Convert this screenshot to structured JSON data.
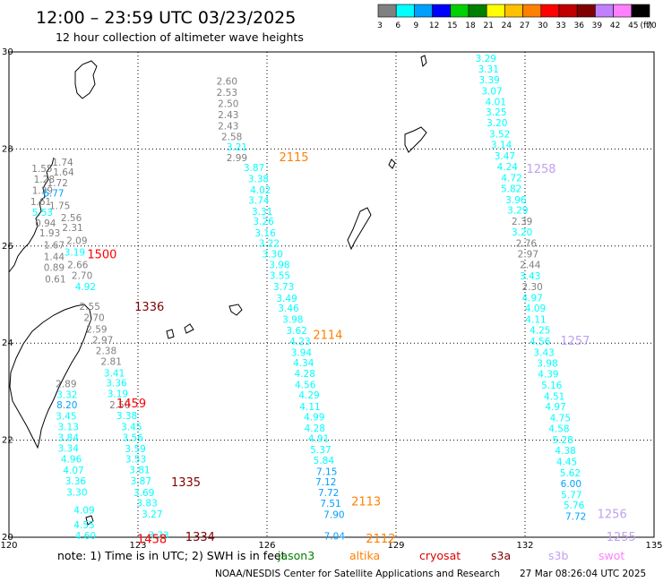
{
  "header": {
    "title": "12:00 – 23:59 UTC 03/23/2025",
    "subtitle": "12 hour collection of altimeter wave heights"
  },
  "colorbar": {
    "colors": [
      "#808080",
      "#00ffff",
      "#00a0ff",
      "#0000ff",
      "#00d000",
      "#008000",
      "#ffff00",
      "#ffc000",
      "#ff8000",
      "#ff0000",
      "#c00000",
      "#800000",
      "#c080ff",
      "#ff80ff",
      "#000000"
    ],
    "labels": [
      "3",
      "6",
      "9",
      "12",
      "15",
      "18",
      "21",
      "24",
      "27",
      "30",
      "33",
      "36",
      "39",
      "42",
      "45",
      "70"
    ],
    "unit": "(ft)"
  },
  "note": {
    "text": "note:  1) Time is in UTC;  2) SWH is in feet",
    "satellites": [
      {
        "name": "jason3",
        "color": "#008000"
      },
      {
        "name": "altika",
        "color": "#ff8000"
      },
      {
        "name": "cryosat",
        "color": "#e00000"
      },
      {
        "name": "s3a",
        "color": "#800000"
      },
      {
        "name": "s3b",
        "color": "#c0a0f0"
      },
      {
        "name": "swot",
        "color": "#ff80ff"
      }
    ]
  },
  "footer": {
    "left": "NOAA/NESDIS Center for Satellite Applications and Research",
    "right": "27 Mar 08:26:04 UTC 2025"
  },
  "chart_data": {
    "type": "scatter",
    "title": "12:00 – 23:59 UTC 03/23/2025",
    "subtitle": "12 hour collection of altimeter wave heights",
    "xlabel": "",
    "ylabel": "",
    "xlim": [
      120,
      135
    ],
    "ylim": [
      20,
      30
    ],
    "xticks": [
      120,
      123,
      126,
      129,
      132,
      135
    ],
    "yticks": [
      20,
      22,
      24,
      26,
      28,
      30
    ],
    "grid": true,
    "unit": "ft",
    "color_scale": {
      "bounds": [
        3,
        6,
        9,
        12,
        15,
        18,
        21,
        24,
        27,
        30,
        33,
        36,
        39,
        42,
        45,
        70
      ],
      "colors": [
        "#808080",
        "#00ffff",
        "#00a0ff",
        "#0000ff",
        "#00d000",
        "#008000",
        "#ffff00",
        "#ffc000",
        "#ff8000",
        "#ff0000",
        "#c00000",
        "#800000",
        "#c080ff",
        "#ff80ff",
        "#000000"
      ]
    },
    "pass_labels": [
      {
        "text": "2115",
        "lon": 126.28,
        "lat": 27.84,
        "color": "#ff8000"
      },
      {
        "text": "2114",
        "lon": 127.07,
        "lat": 24.18,
        "color": "#ff8000"
      },
      {
        "text": "2113",
        "lon": 127.96,
        "lat": 20.75,
        "color": "#ff8000"
      },
      {
        "text": "2112",
        "lon": 128.3,
        "lat": 19.98,
        "color": "#ff8000"
      },
      {
        "text": "1500",
        "lon": 121.82,
        "lat": 25.84,
        "color": "#ff0000"
      },
      {
        "text": "1459",
        "lon": 122.5,
        "lat": 22.77,
        "color": "#ff0000"
      },
      {
        "text": "1458",
        "lon": 122.98,
        "lat": 19.97,
        "color": "#ff0000"
      },
      {
        "text": "1336",
        "lon": 122.92,
        "lat": 24.76,
        "color": "#800000"
      },
      {
        "text": "1335",
        "lon": 123.77,
        "lat": 21.14,
        "color": "#800000"
      },
      {
        "text": "1334",
        "lon": 124.1,
        "lat": 20.02,
        "color": "#800000"
      },
      {
        "text": "1258",
        "lon": 132.03,
        "lat": 27.6,
        "color": "#c0a0f0"
      },
      {
        "text": "1257",
        "lon": 132.82,
        "lat": 24.06,
        "color": "#c0a0f0"
      },
      {
        "text": "1256",
        "lon": 133.68,
        "lat": 20.49,
        "color": "#c0a0f0"
      },
      {
        "text": "1255",
        "lon": 133.89,
        "lat": 20.02,
        "color": "#c0a0f0"
      }
    ],
    "series": [
      {
        "name": "2115",
        "points": [
          {
            "lon": 125.07,
            "lat": 29.4,
            "swh": "2.60"
          },
          {
            "lon": 125.07,
            "lat": 29.17,
            "swh": "2.53"
          },
          {
            "lon": 125.1,
            "lat": 28.94,
            "swh": "2.50"
          },
          {
            "lon": 125.1,
            "lat": 28.71,
            "swh": "2.43"
          },
          {
            "lon": 125.1,
            "lat": 28.48,
            "swh": "2.43"
          },
          {
            "lon": 125.18,
            "lat": 28.26,
            "swh": "2.58"
          },
          {
            "lon": 125.3,
            "lat": 28.04,
            "swh": "3.21"
          },
          {
            "lon": 125.3,
            "lat": 27.82,
            "swh": "2.99"
          },
          {
            "lon": 125.7,
            "lat": 27.62,
            "swh": "3.87"
          },
          {
            "lon": 125.8,
            "lat": 27.39,
            "swh": "3.38"
          },
          {
            "lon": 125.85,
            "lat": 27.16,
            "swh": "4.02"
          },
          {
            "lon": 125.81,
            "lat": 26.95,
            "swh": "3.74"
          },
          {
            "lon": 125.89,
            "lat": 26.72,
            "swh": "3.31"
          },
          {
            "lon": 125.92,
            "lat": 26.51,
            "swh": "3.26"
          },
          {
            "lon": 125.96,
            "lat": 26.27,
            "swh": "3.16"
          },
          {
            "lon": 126.05,
            "lat": 26.06,
            "swh": "3.22"
          },
          {
            "lon": 126.13,
            "lat": 25.84,
            "swh": "3.30"
          },
          {
            "lon": 126.29,
            "lat": 25.62,
            "swh": "3.98"
          },
          {
            "lon": 126.3,
            "lat": 25.4,
            "swh": "3.55"
          },
          {
            "lon": 126.39,
            "lat": 25.17,
            "swh": "3.73"
          },
          {
            "lon": 126.46,
            "lat": 24.93,
            "swh": "3.49"
          },
          {
            "lon": 126.5,
            "lat": 24.72,
            "swh": "3.46"
          },
          {
            "lon": 126.6,
            "lat": 24.49,
            "swh": "3.98"
          },
          {
            "lon": 126.69,
            "lat": 24.26,
            "swh": "3.62"
          },
          {
            "lon": 126.77,
            "lat": 24.04,
            "swh": "4.23"
          },
          {
            "lon": 126.8,
            "lat": 23.81,
            "swh": "3.94"
          },
          {
            "lon": 126.85,
            "lat": 23.6,
            "swh": "4.34"
          },
          {
            "lon": 126.88,
            "lat": 23.38,
            "swh": "4.28"
          },
          {
            "lon": 126.89,
            "lat": 23.15,
            "swh": "4.56"
          },
          {
            "lon": 126.98,
            "lat": 22.93,
            "swh": "4.29"
          },
          {
            "lon": 127.0,
            "lat": 22.69,
            "swh": "4.11"
          },
          {
            "lon": 127.1,
            "lat": 22.48,
            "swh": "4.99"
          },
          {
            "lon": 127.11,
            "lat": 22.25,
            "swh": "4.28"
          },
          {
            "lon": 127.2,
            "lat": 22.04,
            "swh": "4.91"
          },
          {
            "lon": 127.25,
            "lat": 21.81,
            "swh": "5.37"
          },
          {
            "lon": 127.32,
            "lat": 21.59,
            "swh": "5.84"
          },
          {
            "lon": 127.39,
            "lat": 21.36,
            "swh": "7.15"
          },
          {
            "lon": 127.37,
            "lat": 21.14,
            "swh": "7.12"
          },
          {
            "lon": 127.43,
            "lat": 20.92,
            "swh": "7.72"
          },
          {
            "lon": 127.48,
            "lat": 20.7,
            "swh": "7.51"
          },
          {
            "lon": 127.56,
            "lat": 20.47,
            "swh": "7.90"
          },
          {
            "lon": 127.57,
            "lat": 20.03,
            "swh": "7.04"
          }
        ]
      },
      {
        "name": "1500",
        "points": [
          {
            "lon": 121.25,
            "lat": 27.73,
            "swh": "1.74"
          },
          {
            "lon": 120.77,
            "lat": 27.6,
            "swh": "1.55"
          },
          {
            "lon": 121.27,
            "lat": 27.53,
            "swh": "1.64"
          },
          {
            "lon": 120.82,
            "lat": 27.38,
            "swh": "1.28"
          },
          {
            "lon": 121.13,
            "lat": 27.31,
            "swh": "1.72"
          },
          {
            "lon": 120.78,
            "lat": 27.15,
            "swh": "1.39"
          },
          {
            "lon": 121.04,
            "lat": 27.09,
            "swh": "6.77"
          },
          {
            "lon": 120.74,
            "lat": 26.92,
            "swh": "1.61"
          },
          {
            "lon": 121.18,
            "lat": 26.84,
            "swh": "1.75"
          },
          {
            "lon": 120.78,
            "lat": 26.7,
            "swh": "5.53"
          },
          {
            "lon": 121.45,
            "lat": 26.59,
            "swh": "2.56"
          },
          {
            "lon": 120.85,
            "lat": 26.48,
            "swh": "0.94"
          },
          {
            "lon": 121.48,
            "lat": 26.38,
            "swh": "2.31"
          },
          {
            "lon": 120.95,
            "lat": 26.27,
            "swh": "1.93"
          },
          {
            "lon": 121.58,
            "lat": 26.12,
            "swh": "2.09"
          },
          {
            "lon": 121.05,
            "lat": 26.02,
            "swh": "1.67"
          },
          {
            "lon": 121.53,
            "lat": 25.88,
            "swh": "3.19"
          },
          {
            "lon": 121.05,
            "lat": 25.78,
            "swh": "1.44"
          },
          {
            "lon": 121.6,
            "lat": 25.62,
            "swh": "2.66"
          },
          {
            "lon": 121.05,
            "lat": 25.56,
            "swh": "0.89"
          },
          {
            "lon": 121.7,
            "lat": 25.4,
            "swh": "2.70"
          },
          {
            "lon": 121.08,
            "lat": 25.32,
            "swh": "0.61"
          },
          {
            "lon": 121.78,
            "lat": 25.17,
            "swh": "4.92"
          }
        ]
      },
      {
        "name": "1336",
        "points": [
          {
            "lon": 121.88,
            "lat": 24.76,
            "swh": "2.55"
          },
          {
            "lon": 121.98,
            "lat": 24.53,
            "swh": "2.70"
          },
          {
            "lon": 122.04,
            "lat": 24.29,
            "swh": "2.59"
          },
          {
            "lon": 122.18,
            "lat": 24.07,
            "swh": "2.97"
          },
          {
            "lon": 122.26,
            "lat": 23.85,
            "swh": "2.38"
          },
          {
            "lon": 122.38,
            "lat": 23.63,
            "swh": "2.81"
          },
          {
            "lon": 122.45,
            "lat": 23.39,
            "swh": "3.41"
          },
          {
            "lon": 122.5,
            "lat": 23.18,
            "swh": "3.36"
          },
          {
            "lon": 122.53,
            "lat": 22.96,
            "swh": "3.19"
          },
          {
            "lon": 122.58,
            "lat": 22.73,
            "swh": "2.50"
          },
          {
            "lon": 122.74,
            "lat": 22.51,
            "swh": "3.38"
          },
          {
            "lon": 122.85,
            "lat": 22.28,
            "swh": "3.45"
          },
          {
            "lon": 122.88,
            "lat": 22.06,
            "swh": "3.56"
          },
          {
            "lon": 122.94,
            "lat": 21.83,
            "swh": "3.59"
          },
          {
            "lon": 122.95,
            "lat": 21.61,
            "swh": "3.53"
          },
          {
            "lon": 123.04,
            "lat": 21.39,
            "swh": "3.81"
          },
          {
            "lon": 123.07,
            "lat": 21.16,
            "swh": "3.87"
          },
          {
            "lon": 123.14,
            "lat": 20.92,
            "swh": "3.69"
          },
          {
            "lon": 123.21,
            "lat": 20.71,
            "swh": "3.83"
          },
          {
            "lon": 123.33,
            "lat": 20.48,
            "swh": "3.27"
          },
          {
            "lon": 123.48,
            "lat": 20.05,
            "swh": "3.73"
          }
        ]
      },
      {
        "name": "1459",
        "points": [
          {
            "lon": 121.33,
            "lat": 23.16,
            "swh": "2.89"
          },
          {
            "lon": 121.35,
            "lat": 22.94,
            "swh": "3.32"
          },
          {
            "lon": 121.35,
            "lat": 22.73,
            "swh": "8.20"
          },
          {
            "lon": 121.33,
            "lat": 22.5,
            "swh": "3.45"
          },
          {
            "lon": 121.38,
            "lat": 22.28,
            "swh": "3.13"
          },
          {
            "lon": 121.38,
            "lat": 22.06,
            "swh": "3.84"
          },
          {
            "lon": 121.38,
            "lat": 21.84,
            "swh": "3.34"
          },
          {
            "lon": 121.45,
            "lat": 21.61,
            "swh": "4.96"
          },
          {
            "lon": 121.5,
            "lat": 21.38,
            "swh": "4.07"
          },
          {
            "lon": 121.55,
            "lat": 21.16,
            "swh": "3.36"
          },
          {
            "lon": 121.58,
            "lat": 20.93,
            "swh": "3.30"
          },
          {
            "lon": 121.75,
            "lat": 20.56,
            "swh": "4.09"
          },
          {
            "lon": 121.75,
            "lat": 20.26,
            "swh": "4.55"
          },
          {
            "lon": 121.78,
            "lat": 20.04,
            "swh": "4.60"
          }
        ]
      },
      {
        "name": "1258",
        "points": [
          {
            "lon": 131.09,
            "lat": 29.87,
            "swh": "3.29"
          },
          {
            "lon": 131.15,
            "lat": 29.65,
            "swh": "3.31"
          },
          {
            "lon": 131.17,
            "lat": 29.43,
            "swh": "3.39"
          },
          {
            "lon": 131.23,
            "lat": 29.2,
            "swh": "3.07"
          },
          {
            "lon": 131.32,
            "lat": 28.98,
            "swh": "4.01"
          },
          {
            "lon": 131.33,
            "lat": 28.76,
            "swh": "3.25"
          },
          {
            "lon": 131.35,
            "lat": 28.54,
            "swh": "3.20"
          },
          {
            "lon": 131.41,
            "lat": 28.31,
            "swh": "3.52"
          },
          {
            "lon": 131.45,
            "lat": 28.09,
            "swh": "3.14"
          },
          {
            "lon": 131.53,
            "lat": 27.86,
            "swh": "3.47"
          },
          {
            "lon": 131.59,
            "lat": 27.64,
            "swh": "4.24"
          },
          {
            "lon": 131.69,
            "lat": 27.41,
            "swh": "4.72"
          },
          {
            "lon": 131.68,
            "lat": 27.19,
            "swh": "5.82"
          },
          {
            "lon": 131.79,
            "lat": 26.96,
            "swh": "3.96"
          },
          {
            "lon": 131.83,
            "lat": 26.74,
            "swh": "3.29"
          },
          {
            "lon": 131.93,
            "lat": 26.51,
            "swh": "2.39"
          },
          {
            "lon": 131.93,
            "lat": 26.29,
            "swh": "3.20"
          },
          {
            "lon": 132.03,
            "lat": 26.06,
            "swh": "2.76"
          },
          {
            "lon": 132.07,
            "lat": 25.84,
            "swh": "2.97"
          },
          {
            "lon": 132.12,
            "lat": 25.62,
            "swh": "2.44"
          },
          {
            "lon": 132.12,
            "lat": 25.39,
            "swh": "3.43"
          },
          {
            "lon": 132.17,
            "lat": 25.17,
            "swh": "2.30"
          },
          {
            "lon": 132.17,
            "lat": 24.94,
            "swh": "4.97"
          },
          {
            "lon": 132.24,
            "lat": 24.72,
            "swh": "4.09"
          },
          {
            "lon": 132.25,
            "lat": 24.49,
            "swh": "4.11"
          },
          {
            "lon": 132.35,
            "lat": 24.27,
            "swh": "4.25"
          }
        ]
      },
      {
        "name": "1257",
        "points": [
          {
            "lon": 132.35,
            "lat": 24.04,
            "swh": "4.56"
          },
          {
            "lon": 132.44,
            "lat": 23.81,
            "swh": "3.43"
          },
          {
            "lon": 132.52,
            "lat": 23.59,
            "swh": "3.98"
          },
          {
            "lon": 132.54,
            "lat": 23.37,
            "swh": "4.39"
          },
          {
            "lon": 132.62,
            "lat": 23.14,
            "swh": "5.16"
          },
          {
            "lon": 132.68,
            "lat": 22.91,
            "swh": "4.51"
          },
          {
            "lon": 132.71,
            "lat": 22.69,
            "swh": "4.97"
          },
          {
            "lon": 132.82,
            "lat": 22.46,
            "swh": "4.75"
          },
          {
            "lon": 132.79,
            "lat": 22.24,
            "swh": "4.58"
          },
          {
            "lon": 132.88,
            "lat": 22.01,
            "swh": "5.28"
          },
          {
            "lon": 132.94,
            "lat": 21.79,
            "swh": "4.38"
          },
          {
            "lon": 132.97,
            "lat": 21.56,
            "swh": "4.45"
          },
          {
            "lon": 133.05,
            "lat": 21.33,
            "swh": "5.62"
          },
          {
            "lon": 133.07,
            "lat": 21.11,
            "swh": "6.00"
          },
          {
            "lon": 133.08,
            "lat": 20.88,
            "swh": "5.77"
          },
          {
            "lon": 133.14,
            "lat": 20.66,
            "swh": "5.76"
          },
          {
            "lon": 133.18,
            "lat": 20.43,
            "swh": "7.72"
          }
        ]
      }
    ]
  }
}
